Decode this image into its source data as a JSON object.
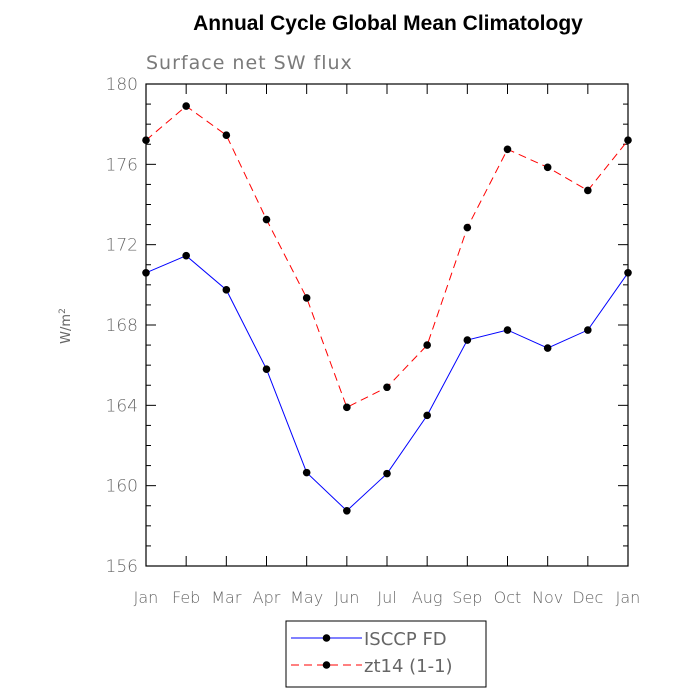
{
  "chart_data": {
    "type": "line",
    "title": "Annual Cycle Global Mean Climatology",
    "subtitle": "Surface net SW flux",
    "ylabel": "W/m",
    "ylabel_sup": "2",
    "xlabel": "",
    "ylim": [
      156,
      180
    ],
    "y_major_ticks": [
      156,
      160,
      164,
      168,
      172,
      176,
      180
    ],
    "y_minor_step": 1,
    "categories": [
      "Jan",
      "Feb",
      "Mar",
      "Apr",
      "May",
      "Jun",
      "Jul",
      "Aug",
      "Sep",
      "Oct",
      "Nov",
      "Dec",
      "Jan"
    ],
    "series": [
      {
        "name": "ISCCP FD",
        "color": "#0000ff",
        "dash": "solid",
        "marker": "filled-circle",
        "values": [
          170.6,
          171.45,
          169.75,
          165.8,
          160.65,
          158.75,
          160.6,
          163.5,
          167.25,
          167.75,
          166.85,
          167.75,
          170.6
        ]
      },
      {
        "name": "zt14 (1-1)",
        "color": "#ff0000",
        "dash": "dashed",
        "marker": "filled-circle",
        "values": [
          177.2,
          178.9,
          177.45,
          173.25,
          169.35,
          163.9,
          164.9,
          167.0,
          172.85,
          176.75,
          175.85,
          174.7,
          177.2
        ]
      }
    ],
    "legend_position": "bottom",
    "grid": false
  }
}
